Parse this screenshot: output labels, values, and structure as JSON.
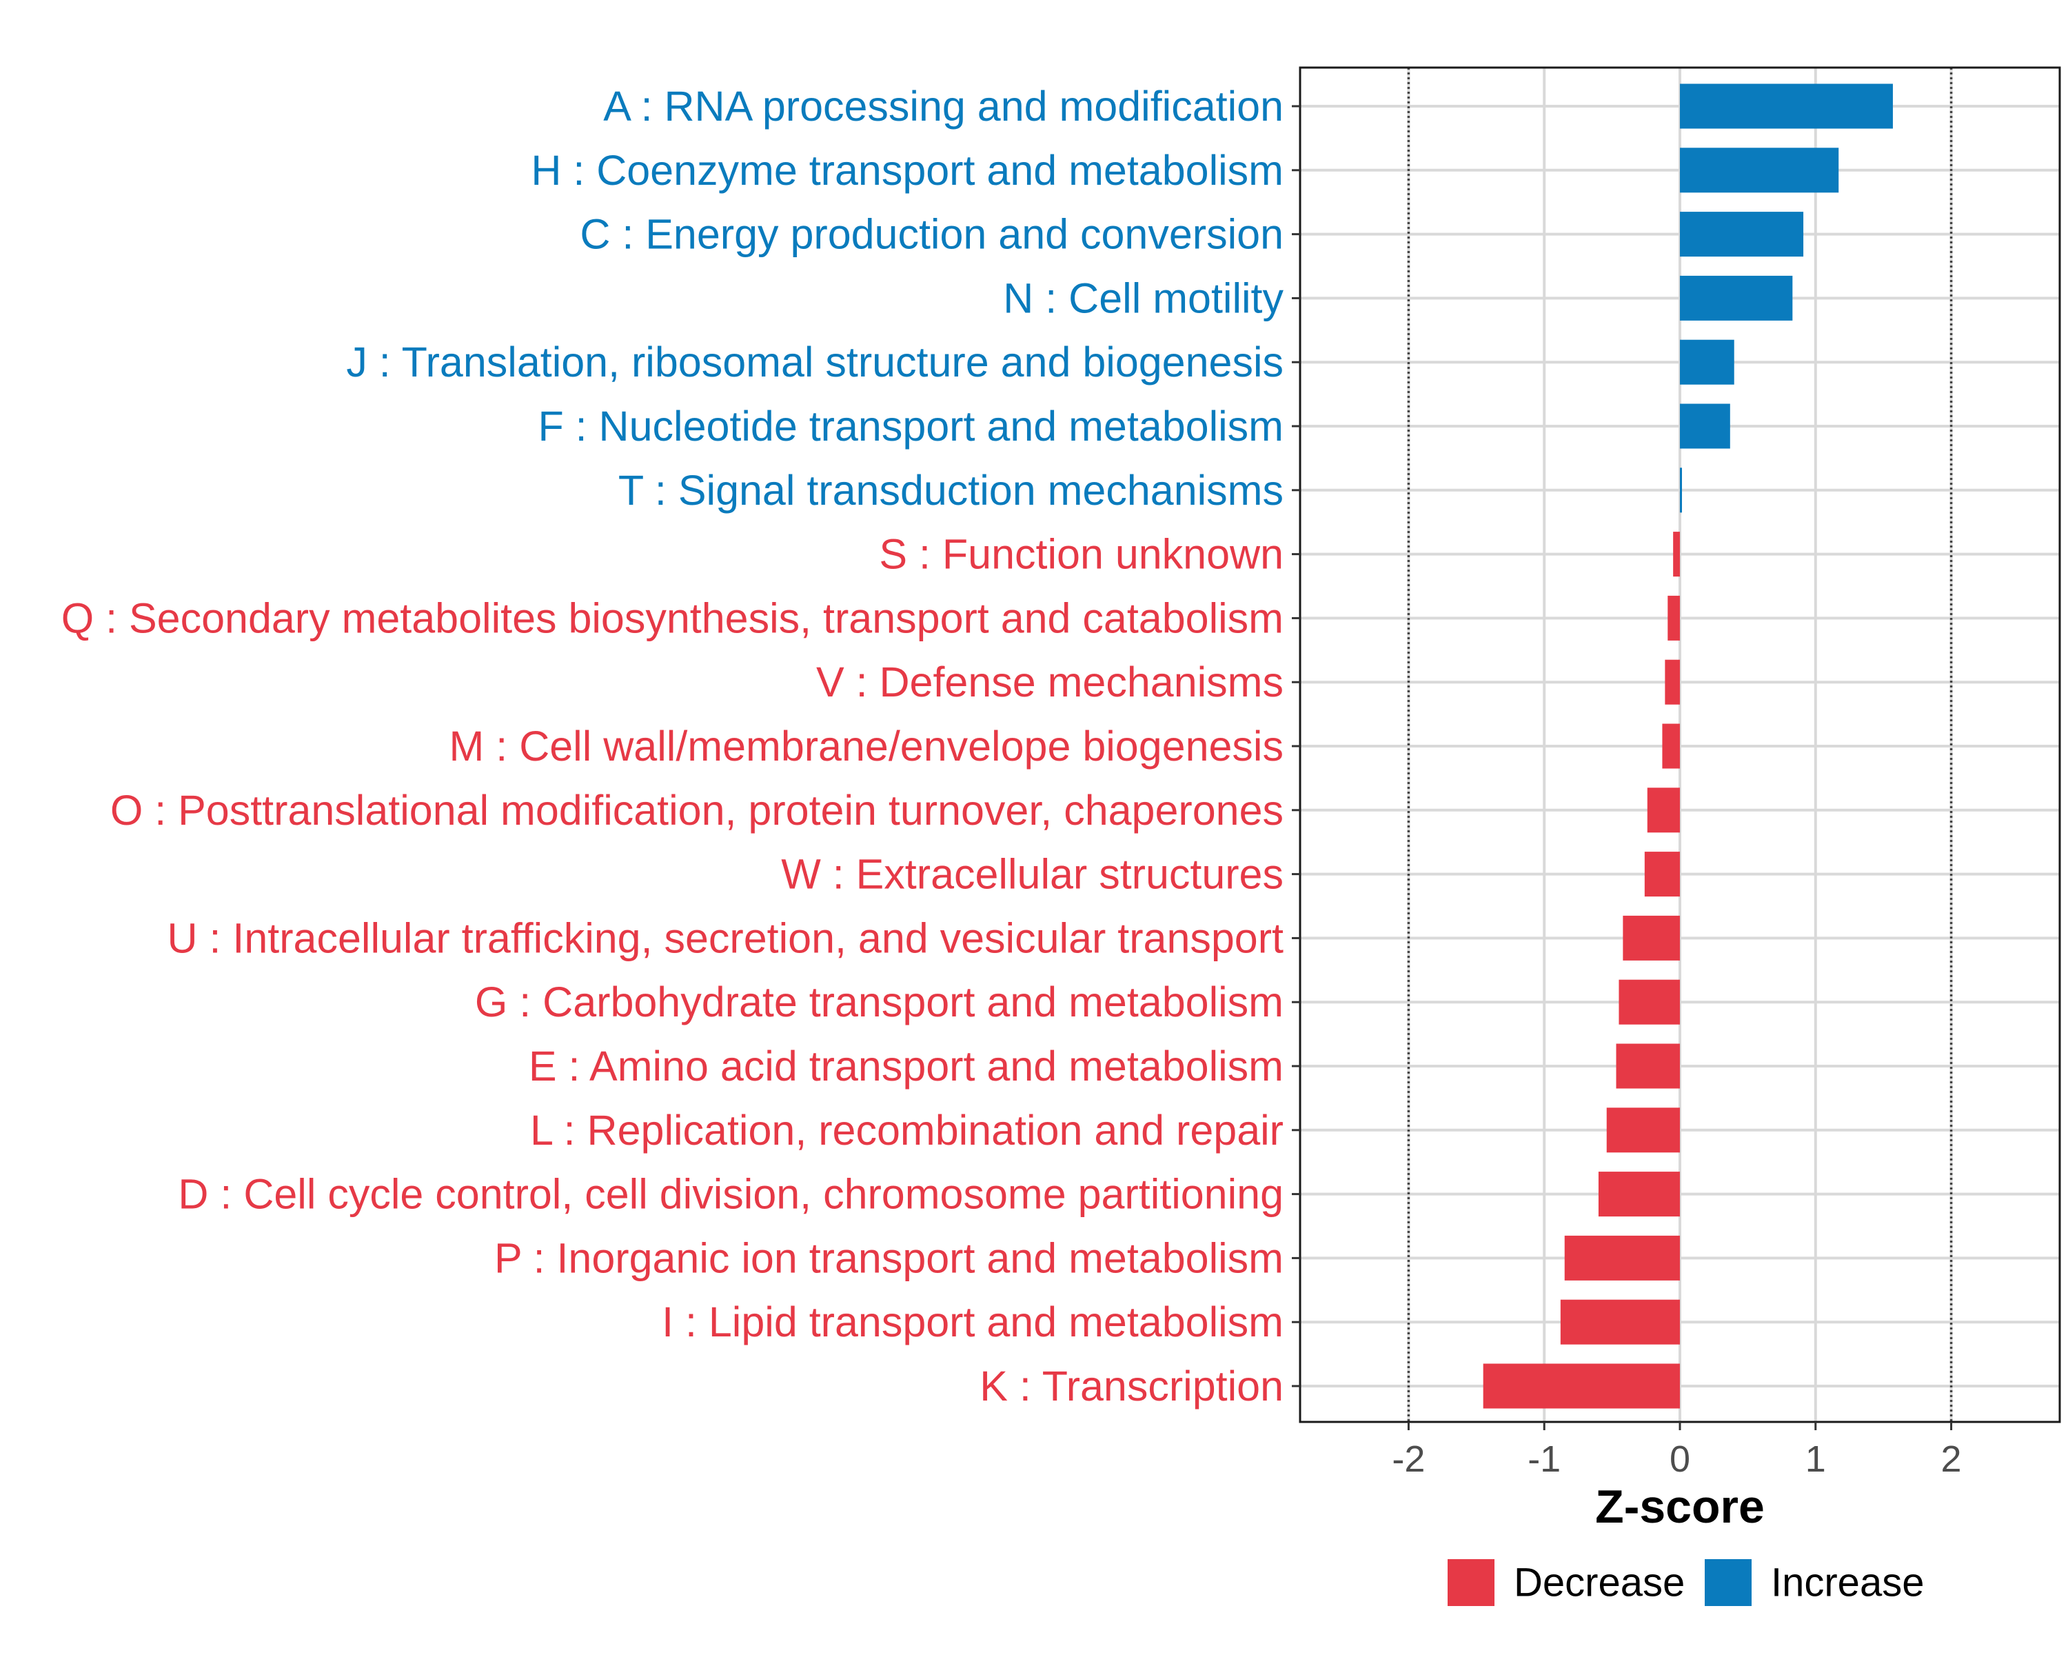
{
  "chart_data": {
    "type": "bar",
    "orientation": "horizontal",
    "title": "",
    "xlabel": "Z-score",
    "ylabel": "",
    "xlim": [
      -2.8,
      2.8
    ],
    "x_ticks": [
      -2,
      -1,
      0,
      1,
      2
    ],
    "x_tick_labels": [
      "-2",
      "-1",
      "0",
      "1",
      "2"
    ],
    "reference_lines": [
      -2,
      2
    ],
    "grid": true,
    "colors": {
      "Increase": "#0a7bbd",
      "Decrease": "#e63946"
    },
    "categories": [
      "A : RNA processing and modification",
      "H : Coenzyme transport and metabolism",
      "C : Energy production and conversion",
      "N : Cell motility",
      "J : Translation, ribosomal structure and biogenesis",
      "F : Nucleotide transport and metabolism",
      "T : Signal transduction mechanisms",
      "S : Function unknown",
      "Q : Secondary metabolites biosynthesis, transport and catabolism",
      "V : Defense mechanisms",
      "M : Cell wall/membrane/envelope biogenesis",
      "O : Posttranslational modification, protein turnover, chaperones",
      "W : Extracellular structures",
      "U : Intracellular trafficking, secretion, and vesicular transport",
      "G : Carbohydrate transport and metabolism",
      "E : Amino acid transport and metabolism",
      "L : Replication, recombination and repair",
      "D : Cell cycle control, cell division, chromosome partitioning",
      "P : Inorganic ion transport and metabolism",
      "I : Lipid transport and metabolism",
      "K : Transcription"
    ],
    "values": [
      1.57,
      1.17,
      0.91,
      0.83,
      0.4,
      0.37,
      0.01,
      -0.05,
      -0.09,
      -0.11,
      -0.13,
      -0.24,
      -0.26,
      -0.42,
      -0.45,
      -0.47,
      -0.54,
      -0.6,
      -0.85,
      -0.88,
      -1.45
    ],
    "groups": [
      "Increase",
      "Increase",
      "Increase",
      "Increase",
      "Increase",
      "Increase",
      "Increase",
      "Decrease",
      "Decrease",
      "Decrease",
      "Decrease",
      "Decrease",
      "Decrease",
      "Decrease",
      "Decrease",
      "Decrease",
      "Decrease",
      "Decrease",
      "Decrease",
      "Decrease",
      "Decrease"
    ],
    "legend": {
      "position": "bottom",
      "entries": [
        {
          "label": "Decrease",
          "color": "#e63946"
        },
        {
          "label": "Increase",
          "color": "#0a7bbd"
        }
      ]
    }
  }
}
